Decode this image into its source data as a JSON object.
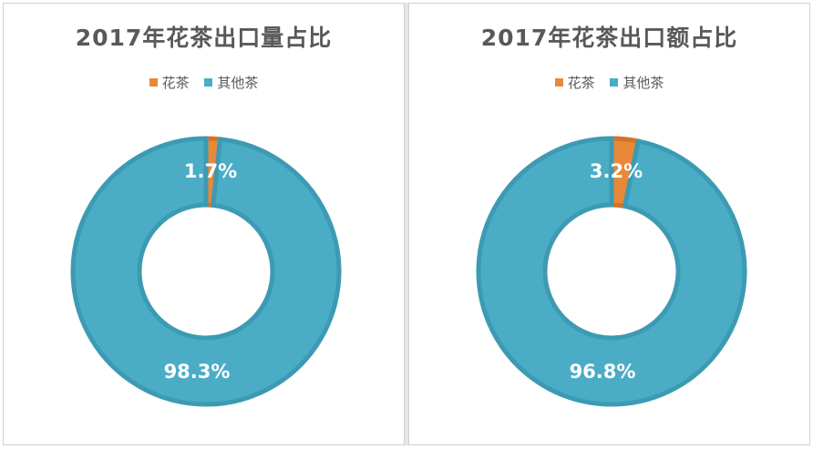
{
  "chart_data": [
    {
      "type": "pie",
      "title": "2017年花茶出口量占比",
      "categories": [
        "花茶",
        "其他茶"
      ],
      "values": [
        1.7,
        98.3
      ],
      "labels": [
        "1.7%",
        "98.3%"
      ],
      "colors": [
        "#E8893A",
        "#4BACC6"
      ],
      "legend": "top"
    },
    {
      "type": "pie",
      "title": "2017年花茶出口额占比",
      "categories": [
        "花茶",
        "其他茶"
      ],
      "values": [
        3.2,
        96.8
      ],
      "labels": [
        "3.2%",
        "96.8%"
      ],
      "colors": [
        "#E8893A",
        "#4BACC6"
      ],
      "legend": "top"
    }
  ]
}
